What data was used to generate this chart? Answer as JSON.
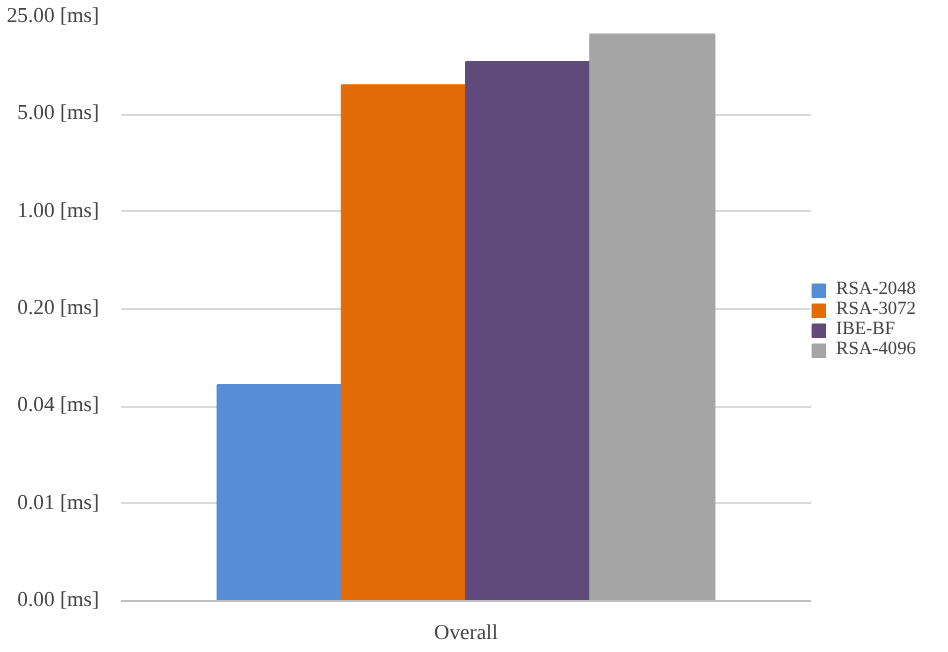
{
  "chart_data": {
    "type": "bar",
    "categories": [
      "Overall"
    ],
    "series": [
      {
        "name": "RSA-2048",
        "color": "#558ed5",
        "values": [
          0.057
        ]
      },
      {
        "name": "RSA-3072",
        "color": "#e36c09",
        "values": [
          8.1
        ]
      },
      {
        "name": "IBE-BF",
        "color": "#604a7b",
        "values": [
          11.9
        ]
      },
      {
        "name": "RSA-4096",
        "color": "#a5a5a5",
        "values": [
          18.7
        ]
      }
    ],
    "log": "y",
    "ylim": [
      0.0016,
      25
    ],
    "yticks": [
      {
        "value": 0.0016,
        "label": "0.00 [ms]"
      },
      {
        "value": 0.008,
        "label": "0.01 [ms]"
      },
      {
        "value": 0.04,
        "label": "0.04 [ms]"
      },
      {
        "value": 0.2,
        "label": "0.20 [ms]"
      },
      {
        "value": 1,
        "label": "1.00 [ms]"
      },
      {
        "value": 5,
        "label": "5.00 [ms]"
      },
      {
        "value": 25,
        "label": "25.00 [ms]"
      }
    ],
    "grid": "y",
    "legend": "right"
  }
}
